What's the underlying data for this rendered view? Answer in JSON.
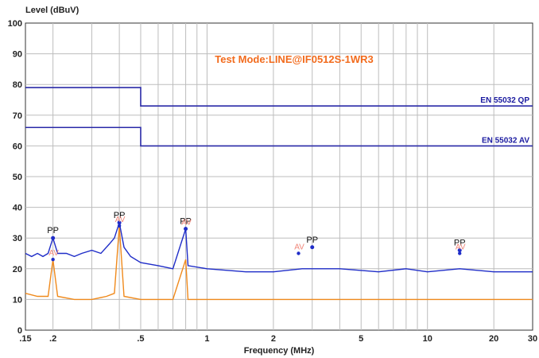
{
  "chart_data": {
    "type": "line",
    "title": "Test Mode:LINE@IF0512S-1WR3",
    "ylabel": "Level (dBuV)",
    "xlabel": "Frequency (MHz)",
    "x_scale": "log",
    "xlim": [
      0.15,
      30
    ],
    "ylim": [
      0,
      100
    ],
    "x_ticks": [
      {
        "value": 0.15,
        "label": ".15"
      },
      {
        "value": 0.2,
        "label": ".2"
      },
      {
        "value": 0.5,
        "label": ".5"
      },
      {
        "value": 1,
        "label": "1"
      },
      {
        "value": 2,
        "label": "2"
      },
      {
        "value": 5,
        "label": "5"
      },
      {
        "value": 10,
        "label": "10"
      },
      {
        "value": 20,
        "label": "20"
      },
      {
        "value": 30,
        "label": "30"
      }
    ],
    "y_ticks": [
      0,
      10,
      20,
      30,
      40,
      50,
      60,
      70,
      80,
      90,
      100
    ],
    "grid": true,
    "limit_lines": [
      {
        "name": "EN 55032 QP",
        "color": "#2a2aa8",
        "segments": [
          [
            0.15,
            0.5,
            79
          ],
          [
            0.5,
            30,
            73
          ]
        ]
      },
      {
        "name": "EN 55032 AV",
        "color": "#2a2aa8",
        "segments": [
          [
            0.15,
            0.5,
            66
          ],
          [
            0.5,
            30,
            60
          ]
        ]
      }
    ],
    "series": [
      {
        "color": "#1f2dc8",
        "points": [
          [
            0.15,
            25
          ],
          [
            0.16,
            24
          ],
          [
            0.17,
            25
          ],
          [
            0.18,
            24
          ],
          [
            0.19,
            25
          ],
          [
            0.2,
            30
          ],
          [
            0.21,
            25
          ],
          [
            0.23,
            25
          ],
          [
            0.25,
            24
          ],
          [
            0.27,
            25
          ],
          [
            0.3,
            26
          ],
          [
            0.33,
            25
          ],
          [
            0.36,
            28
          ],
          [
            0.38,
            30
          ],
          [
            0.4,
            35
          ],
          [
            0.42,
            27
          ],
          [
            0.45,
            24
          ],
          [
            0.5,
            22
          ],
          [
            0.6,
            21
          ],
          [
            0.7,
            20
          ],
          [
            0.8,
            33
          ],
          [
            0.82,
            21
          ],
          [
            1.0,
            20
          ],
          [
            1.5,
            19
          ],
          [
            2.0,
            19
          ],
          [
            2.7,
            20
          ],
          [
            3.0,
            20
          ],
          [
            4.0,
            20
          ],
          [
            6.0,
            19
          ],
          [
            8.0,
            20
          ],
          [
            10.0,
            19
          ],
          [
            14.0,
            20
          ],
          [
            20.0,
            19
          ],
          [
            30.0,
            19
          ]
        ]
      },
      {
        "color": "#f08a1c",
        "points": [
          [
            0.15,
            12
          ],
          [
            0.17,
            11
          ],
          [
            0.19,
            11
          ],
          [
            0.2,
            23
          ],
          [
            0.21,
            11
          ],
          [
            0.25,
            10
          ],
          [
            0.3,
            10
          ],
          [
            0.35,
            11
          ],
          [
            0.38,
            12
          ],
          [
            0.4,
            34
          ],
          [
            0.42,
            11
          ],
          [
            0.5,
            10
          ],
          [
            0.6,
            10
          ],
          [
            0.7,
            10
          ],
          [
            0.8,
            23
          ],
          [
            0.82,
            10
          ],
          [
            1.0,
            10
          ],
          [
            1.5,
            10
          ],
          [
            2.0,
            10
          ],
          [
            2.7,
            10
          ],
          [
            3.0,
            10
          ],
          [
            5.0,
            10
          ],
          [
            8.0,
            10
          ],
          [
            10.0,
            10
          ],
          [
            14.0,
            10
          ],
          [
            20.0,
            10
          ],
          [
            30.0,
            10
          ]
        ]
      }
    ],
    "markers": [
      {
        "label": "PP",
        "x": 0.2,
        "y": 30
      },
      {
        "label": "PP",
        "x": 0.4,
        "y": 35
      },
      {
        "label": "PP",
        "x": 0.8,
        "y": 33
      },
      {
        "label": "PP",
        "x": 3.0,
        "y": 27
      },
      {
        "label": "PP",
        "x": 14.0,
        "y": 26
      }
    ],
    "av_markers": [
      {
        "label": "AV",
        "x": 0.2,
        "y": 23
      },
      {
        "label": "AV",
        "x": 0.4,
        "y": 34
      },
      {
        "label": "AV",
        "x": 0.8,
        "y": 33
      },
      {
        "label": "AV",
        "x": 2.6,
        "y": 25
      },
      {
        "label": "AV",
        "x": 14.0,
        "y": 25
      }
    ]
  }
}
